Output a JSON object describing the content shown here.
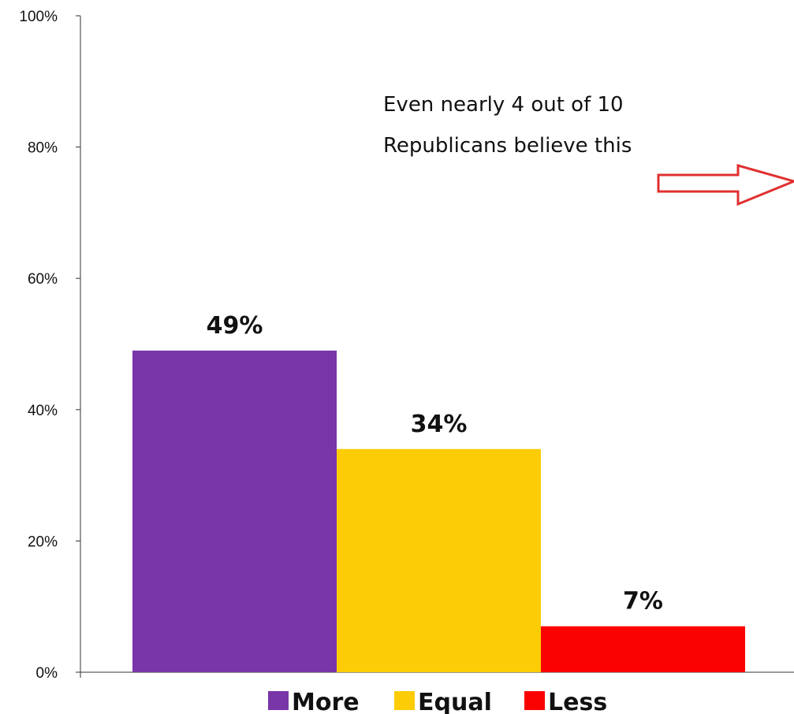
{
  "chart_data": {
    "type": "bar",
    "series": [
      {
        "name": "More",
        "value": 49,
        "label": "49%",
        "color": "#7836a9"
      },
      {
        "name": "Equal",
        "value": 34,
        "label": "34%",
        "color": "#fccc07"
      },
      {
        "name": "Less",
        "value": 7,
        "label": "7%",
        "color": "#fa0200"
      }
    ],
    "ylim": [
      0,
      100
    ],
    "yticks": [
      {
        "value": 0,
        "label": "0%"
      },
      {
        "value": 20,
        "label": "20%"
      },
      {
        "value": 40,
        "label": "40%"
      },
      {
        "value": 60,
        "label": "60%"
      },
      {
        "value": 80,
        "label": "80%"
      },
      {
        "value": 100,
        "label": "100%"
      }
    ],
    "annotation": {
      "lines": [
        "Even nearly 4 out of 10",
        "Republicans believe this"
      ],
      "arrow_color": "#e03030"
    },
    "legend_placement": "bottom",
    "grid": false
  }
}
